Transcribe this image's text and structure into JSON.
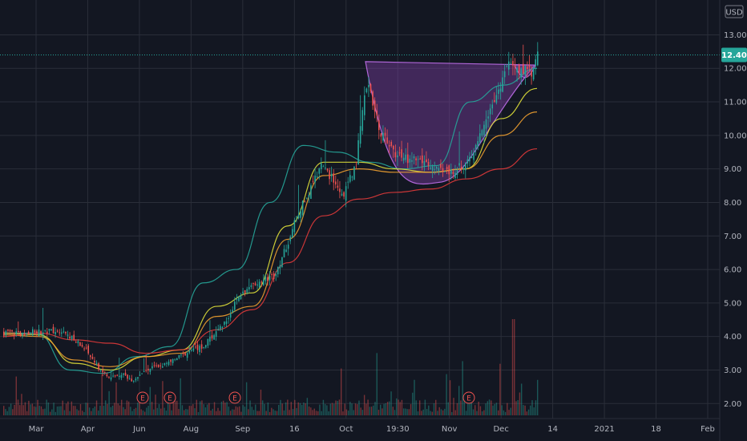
{
  "axis": {
    "currency_label": "USD",
    "last_price_label": "12.40"
  },
  "colors": {
    "background": "#131722",
    "grid": "#2a2e39",
    "up": "#26a69a",
    "down": "#ef5350",
    "ma_fast": "#26a69a",
    "ma_mid": "#e0e03a",
    "ma_slow": "#f0a030",
    "ma_long": "#e03a3a",
    "pattern_fill": "#7b3fa0",
    "pattern_stroke": "#b066d8"
  },
  "earnings_marker_label": "E",
  "chart_data": {
    "type": "candlestick",
    "ylim": [
      1.6,
      13.8
    ],
    "y_ticks": [
      "2.00",
      "3.00",
      "4.00",
      "5.00",
      "6.00",
      "7.00",
      "8.00",
      "9.00",
      "10.00",
      "11.00",
      "12.00",
      "13.00"
    ],
    "y_tick_values": [
      2,
      3,
      4,
      5,
      6,
      7,
      8,
      9,
      10,
      11,
      12,
      13
    ],
    "x_ticks": [
      "Mar",
      "Apr",
      "Jun",
      "Aug",
      "Sep",
      "16",
      "Oct",
      "19:30",
      "Nov",
      "Dec",
      "14",
      "2021",
      "18",
      "Feb"
    ],
    "last_price": 12.4,
    "price_path": [
      [
        0,
        4.1
      ],
      [
        6,
        4.15
      ],
      [
        10,
        4.2
      ],
      [
        14,
        3.6
      ],
      [
        16,
        3.1
      ],
      [
        18,
        2.75
      ],
      [
        20,
        2.9
      ],
      [
        22,
        2.7
      ],
      [
        24,
        3.0
      ],
      [
        28,
        3.2
      ],
      [
        32,
        3.6
      ],
      [
        34,
        3.7
      ],
      [
        38,
        4.5
      ],
      [
        40,
        5.2
      ],
      [
        43,
        5.6
      ],
      [
        46,
        5.8
      ],
      [
        48,
        6.6
      ],
      [
        50,
        7.6
      ],
      [
        52,
        8.3
      ],
      [
        54,
        9.1
      ],
      [
        56,
        8.7
      ],
      [
        57,
        8.4
      ],
      [
        58,
        8.2
      ],
      [
        60,
        9.2
      ],
      [
        62,
        11.7
      ],
      [
        64,
        10.2
      ],
      [
        66,
        9.6
      ],
      [
        68,
        9.3
      ],
      [
        70,
        9.3
      ],
      [
        72,
        9.2
      ],
      [
        74,
        8.9
      ],
      [
        76,
        8.9
      ],
      [
        78,
        9.1
      ],
      [
        80,
        9.3
      ],
      [
        82,
        10.5
      ],
      [
        84,
        11.2
      ],
      [
        86,
        12.2
      ],
      [
        88,
        11.8
      ],
      [
        89,
        12.1
      ],
      [
        90,
        11.9
      ],
      [
        91,
        12.4
      ]
    ],
    "moving_averages": [
      {
        "color_key": "ma_fast",
        "values": [
          4.1,
          4.1,
          3.0,
          2.9,
          3.4,
          3.7,
          5.6,
          6.0,
          8.0,
          9.7,
          9.5,
          9.2,
          9.0,
          9.1,
          11.0,
          11.5,
          12.0
        ]
      },
      {
        "color_key": "ma_mid",
        "values": [
          4.1,
          4.05,
          3.2,
          3.0,
          3.4,
          3.6,
          4.9,
          5.3,
          7.3,
          9.2,
          9.2,
          9.0,
          8.9,
          9.0,
          10.5,
          11.4
        ]
      },
      {
        "color_key": "ma_slow",
        "values": [
          4.05,
          4.0,
          3.3,
          3.1,
          3.4,
          3.5,
          4.6,
          4.9,
          6.9,
          8.8,
          9.0,
          8.9,
          8.9,
          9.0,
          10.0,
          10.7
        ]
      },
      {
        "color_key": "ma_long",
        "values": [
          4.0,
          4.1,
          3.9,
          3.8,
          3.5,
          3.6,
          4.2,
          4.8,
          6.2,
          7.6,
          8.1,
          8.3,
          8.4,
          8.7,
          9.0,
          9.6
        ]
      }
    ],
    "cup_pattern": {
      "left_price": 12.2,
      "bottom_price": 8.6,
      "right_price": 12.1
    },
    "handle_pattern": {
      "top_price": 12.1,
      "bottom_price": 11.55
    },
    "earnings_events": 4
  }
}
